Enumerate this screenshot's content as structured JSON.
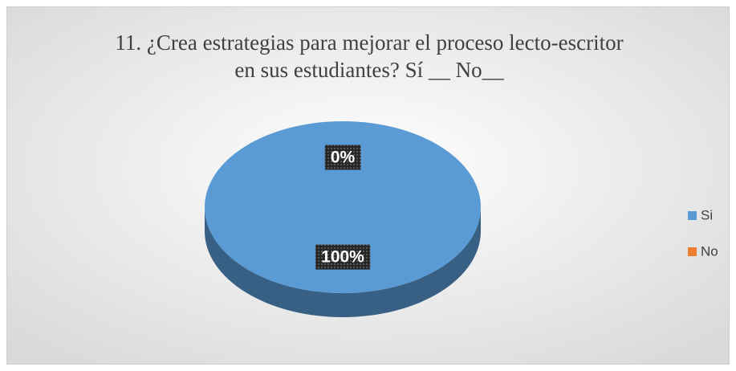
{
  "chart_data": {
    "type": "pie",
    "title": "11. ¿Crea estrategias para mejorar el proceso lecto-escritor en sus estudiantes? Sí __ No__",
    "categories": [
      "Si",
      "No"
    ],
    "values": [
      100,
      0
    ],
    "value_labels": [
      "100%",
      "0%"
    ],
    "colors": [
      "#5b9bd5",
      "#ed7d31"
    ],
    "legend": "right"
  }
}
